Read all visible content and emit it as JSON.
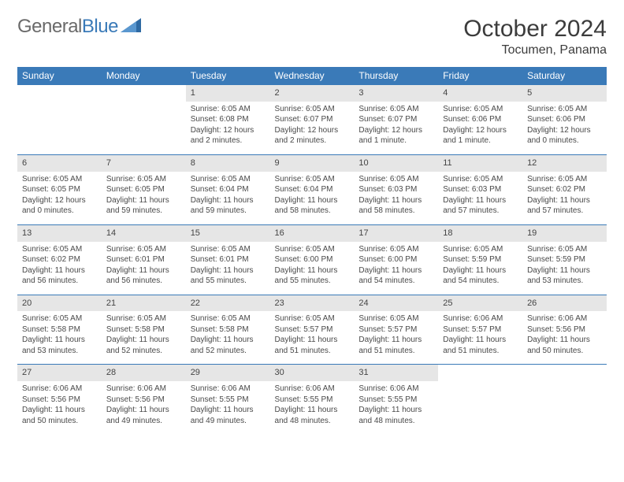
{
  "brand": {
    "g": "General",
    "b": "Blue"
  },
  "title": "October 2024",
  "location": "Tocumen, Panama",
  "dow": [
    "Sunday",
    "Monday",
    "Tuesday",
    "Wednesday",
    "Thursday",
    "Friday",
    "Saturday"
  ],
  "colors": {
    "accent": "#3a7ab8",
    "dayhead": "#e6e6e6",
    "text": "#494949",
    "headerText": "#3c3c3c",
    "brandGrey": "#6a6a6a"
  },
  "cells": [
    {
      "blank": true
    },
    {
      "blank": true
    },
    {
      "n": "1",
      "sr": "6:05 AM",
      "ss": "6:08 PM",
      "dl": "12 hours and 2 minutes."
    },
    {
      "n": "2",
      "sr": "6:05 AM",
      "ss": "6:07 PM",
      "dl": "12 hours and 2 minutes."
    },
    {
      "n": "3",
      "sr": "6:05 AM",
      "ss": "6:07 PM",
      "dl": "12 hours and 1 minute."
    },
    {
      "n": "4",
      "sr": "6:05 AM",
      "ss": "6:06 PM",
      "dl": "12 hours and 1 minute."
    },
    {
      "n": "5",
      "sr": "6:05 AM",
      "ss": "6:06 PM",
      "dl": "12 hours and 0 minutes."
    },
    {
      "n": "6",
      "sr": "6:05 AM",
      "ss": "6:05 PM",
      "dl": "12 hours and 0 minutes."
    },
    {
      "n": "7",
      "sr": "6:05 AM",
      "ss": "6:05 PM",
      "dl": "11 hours and 59 minutes."
    },
    {
      "n": "8",
      "sr": "6:05 AM",
      "ss": "6:04 PM",
      "dl": "11 hours and 59 minutes."
    },
    {
      "n": "9",
      "sr": "6:05 AM",
      "ss": "6:04 PM",
      "dl": "11 hours and 58 minutes."
    },
    {
      "n": "10",
      "sr": "6:05 AM",
      "ss": "6:03 PM",
      "dl": "11 hours and 58 minutes."
    },
    {
      "n": "11",
      "sr": "6:05 AM",
      "ss": "6:03 PM",
      "dl": "11 hours and 57 minutes."
    },
    {
      "n": "12",
      "sr": "6:05 AM",
      "ss": "6:02 PM",
      "dl": "11 hours and 57 minutes."
    },
    {
      "n": "13",
      "sr": "6:05 AM",
      "ss": "6:02 PM",
      "dl": "11 hours and 56 minutes."
    },
    {
      "n": "14",
      "sr": "6:05 AM",
      "ss": "6:01 PM",
      "dl": "11 hours and 56 minutes."
    },
    {
      "n": "15",
      "sr": "6:05 AM",
      "ss": "6:01 PM",
      "dl": "11 hours and 55 minutes."
    },
    {
      "n": "16",
      "sr": "6:05 AM",
      "ss": "6:00 PM",
      "dl": "11 hours and 55 minutes."
    },
    {
      "n": "17",
      "sr": "6:05 AM",
      "ss": "6:00 PM",
      "dl": "11 hours and 54 minutes."
    },
    {
      "n": "18",
      "sr": "6:05 AM",
      "ss": "5:59 PM",
      "dl": "11 hours and 54 minutes."
    },
    {
      "n": "19",
      "sr": "6:05 AM",
      "ss": "5:59 PM",
      "dl": "11 hours and 53 minutes."
    },
    {
      "n": "20",
      "sr": "6:05 AM",
      "ss": "5:58 PM",
      "dl": "11 hours and 53 minutes."
    },
    {
      "n": "21",
      "sr": "6:05 AM",
      "ss": "5:58 PM",
      "dl": "11 hours and 52 minutes."
    },
    {
      "n": "22",
      "sr": "6:05 AM",
      "ss": "5:58 PM",
      "dl": "11 hours and 52 minutes."
    },
    {
      "n": "23",
      "sr": "6:05 AM",
      "ss": "5:57 PM",
      "dl": "11 hours and 51 minutes."
    },
    {
      "n": "24",
      "sr": "6:05 AM",
      "ss": "5:57 PM",
      "dl": "11 hours and 51 minutes."
    },
    {
      "n": "25",
      "sr": "6:06 AM",
      "ss": "5:57 PM",
      "dl": "11 hours and 51 minutes."
    },
    {
      "n": "26",
      "sr": "6:06 AM",
      "ss": "5:56 PM",
      "dl": "11 hours and 50 minutes."
    },
    {
      "n": "27",
      "sr": "6:06 AM",
      "ss": "5:56 PM",
      "dl": "11 hours and 50 minutes."
    },
    {
      "n": "28",
      "sr": "6:06 AM",
      "ss": "5:56 PM",
      "dl": "11 hours and 49 minutes."
    },
    {
      "n": "29",
      "sr": "6:06 AM",
      "ss": "5:55 PM",
      "dl": "11 hours and 49 minutes."
    },
    {
      "n": "30",
      "sr": "6:06 AM",
      "ss": "5:55 PM",
      "dl": "11 hours and 48 minutes."
    },
    {
      "n": "31",
      "sr": "6:06 AM",
      "ss": "5:55 PM",
      "dl": "11 hours and 48 minutes."
    },
    {
      "blank": true
    },
    {
      "blank": true
    }
  ]
}
